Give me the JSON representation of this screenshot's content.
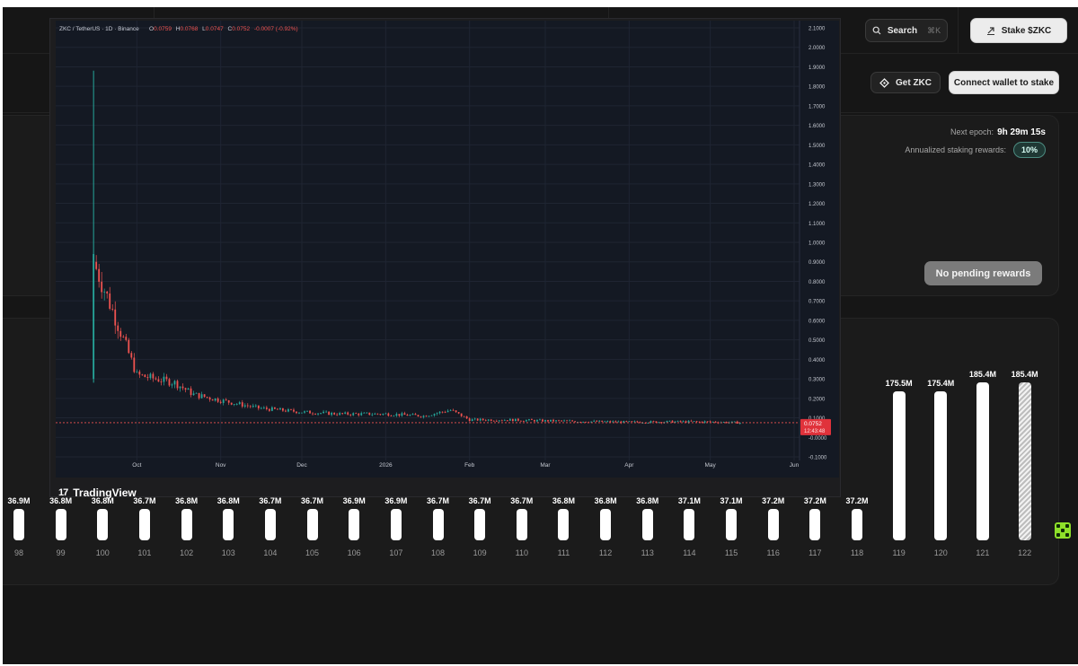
{
  "header": {
    "search_label": "Search",
    "search_shortcut": "⌘K",
    "stake_label": "Stake $ZKC"
  },
  "actions": {
    "get_zkc_label": "Get ZKC",
    "connect_label": "Connect wallet to stake"
  },
  "staking": {
    "next_epoch_label": "Next epoch:",
    "next_epoch_value": "9h 29m 15s",
    "annualized_label": "Annualized staking rewards:",
    "annualized_value": "10%",
    "pending_label": "No pending rewards"
  },
  "epochs": {
    "indices": [
      "98",
      "99",
      "100",
      "101",
      "102",
      "103",
      "104",
      "105",
      "106",
      "107",
      "108",
      "109",
      "110",
      "111",
      "112",
      "113",
      "114",
      "115",
      "116",
      "117",
      "118",
      "119",
      "120",
      "121",
      "122"
    ],
    "value_labels": [
      "36.9M",
      "36.8M",
      "36.8M",
      "36.7M",
      "36.8M",
      "36.8M",
      "36.7M",
      "36.7M",
      "36.9M",
      "36.9M",
      "36.7M",
      "36.7M",
      "36.7M",
      "36.8M",
      "36.8M",
      "36.8M",
      "37.1M",
      "37.1M",
      "37.2M",
      "37.2M",
      "37.2M",
      "175.5M",
      "175.4M",
      "185.4M",
      "185.4M"
    ],
    "values_millions": [
      36.9,
      36.8,
      36.8,
      36.7,
      36.8,
      36.8,
      36.7,
      36.7,
      36.9,
      36.9,
      36.7,
      36.7,
      36.7,
      36.8,
      36.8,
      36.8,
      37.1,
      37.1,
      37.2,
      37.2,
      37.2,
      175.5,
      175.4,
      185.4,
      185.4
    ],
    "hatched_index": 24
  },
  "chart": {
    "legend_symbol": "ZKC / TetherUS · 1D · Binance",
    "o_label": "O",
    "o_value": "0.0759",
    "h_label": "H",
    "h_value": "0.0768",
    "l_label": "L",
    "l_value": "0.0747",
    "c_label": "C",
    "c_value": "0.0752",
    "change_value": "-0.0007 (-0.92%)",
    "last_price": "0.0752",
    "countdown": "12:43:48",
    "brand": "TradingView",
    "colors": {
      "up": "#26a69a",
      "down": "#ef5350",
      "bg": "#141923"
    }
  },
  "chart_data": {
    "type": "candlestick",
    "title": "ZKC / TetherUS · 1D · Binance",
    "x_ticks": [
      "Oct",
      "Nov",
      "Dec",
      "2026",
      "Feb",
      "Mar",
      "Apr",
      "May",
      "Jun"
    ],
    "y_ticks": [
      "-0.1000",
      "-0.0000",
      "0.1000",
      "0.2000",
      "0.3000",
      "0.4000",
      "0.5000",
      "0.6000",
      "0.7000",
      "0.8000",
      "0.9000",
      "1.0000",
      "1.1000",
      "1.2000",
      "1.3000",
      "1.4000",
      "1.5000",
      "1.6000",
      "1.7000",
      "1.8000",
      "1.9000",
      "2.0000",
      "2.1000"
    ],
    "ylim": [
      -0.1,
      2.1
    ],
    "x": [
      "2025-09-15",
      "2025-09-22",
      "2025-10-01",
      "2025-10-08",
      "2025-10-15",
      "2025-10-22",
      "2025-11-01",
      "2025-11-15",
      "2025-12-01",
      "2025-12-15",
      "2026-01-01",
      "2026-01-15",
      "2026-01-25",
      "2026-02-01",
      "2026-02-15",
      "2026-03-01",
      "2026-03-15",
      "2026-04-01",
      "2026-04-15",
      "2026-05-01",
      "2026-05-12"
    ],
    "close": [
      0.9,
      0.65,
      0.32,
      0.3,
      0.28,
      0.22,
      0.19,
      0.15,
      0.13,
      0.12,
      0.12,
      0.11,
      0.14,
      0.09,
      0.09,
      0.085,
      0.082,
      0.078,
      0.08,
      0.08,
      0.0752
    ],
    "first_day_high": 1.88,
    "first_day_low": 0.28,
    "last_close": 0.0752,
    "grid": true
  }
}
